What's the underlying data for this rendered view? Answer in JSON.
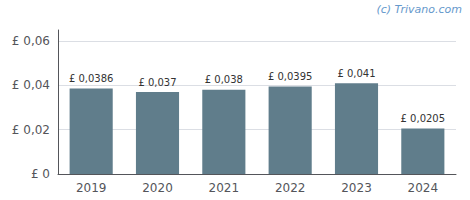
{
  "chart_data": {
    "type": "bar",
    "categories": [
      "2019",
      "2020",
      "2021",
      "2022",
      "2023",
      "2024"
    ],
    "values": [
      0.0386,
      0.037,
      0.038,
      0.0395,
      0.041,
      0.0205
    ],
    "value_labels": [
      "£ 0,0386",
      "£ 0,037",
      "£ 0,038",
      "£ 0,0395",
      "£ 0,041",
      "£ 0,0205"
    ],
    "color": "#607d8b",
    "ylim": [
      0,
      0.065
    ],
    "yticks": [
      {
        "value": 0,
        "label": "£ 0"
      },
      {
        "value": 0.02,
        "label": "£ 0,02"
      },
      {
        "value": 0.04,
        "label": "£ 0,04"
      },
      {
        "value": 0.06,
        "label": "£ 0,06"
      }
    ],
    "grid": true,
    "data_labels": true,
    "annotations": [
      {
        "text": "(c) Trivano.com",
        "color": "#6699cc"
      }
    ]
  }
}
